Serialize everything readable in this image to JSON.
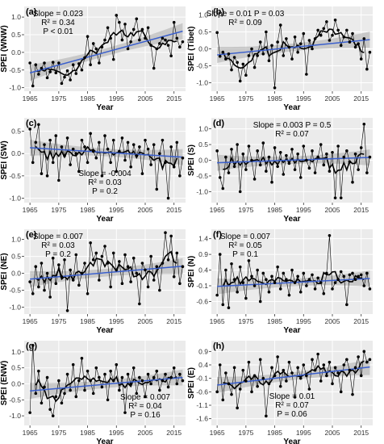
{
  "chart_data": [
    {
      "panel": "(a)",
      "type": "line",
      "region": "WNW",
      "xlabel": "Year",
      "ylabel": "SPEI (WNW)",
      "xlim": [
        1963,
        2019
      ],
      "ylim": [
        -1.1,
        1.3
      ],
      "xticks": [
        1965,
        1975,
        1985,
        1995,
        2005,
        2015
      ],
      "yticks": [
        -1.0,
        -0.5,
        0.0,
        0.5,
        1.0
      ],
      "trend": {
        "start": -0.58,
        "end": 0.6
      },
      "annotations": [
        "Slope = 0.023",
        "R² = 0.34",
        "P < 0.01"
      ],
      "annot_pos": "top-left",
      "series": [
        {
          "values": [
            -0.3,
            -0.95,
            -0.35,
            -0.62,
            -0.45,
            -0.3,
            -0.72,
            -0.55,
            -0.28,
            -0.58,
            -0.3,
            -0.88,
            -0.7,
            -0.52,
            -0.78,
            -0.35,
            -0.6,
            -0.32,
            -0.5,
            -0.15,
            0.45,
            -0.35,
            0.25,
            0.1,
            -0.3,
            0.15,
            0.35,
            0.7,
            0.4,
            -0.2,
            1.05,
            0.85,
            0.35,
            0.8,
            0.1,
            0.3,
            0.65,
            0.95,
            0.35,
            0.65,
            0.4,
            0.7,
            0.2,
            -0.45,
            0.1,
            0.25,
            0.4,
            0.35,
            0.2,
            -0.1,
            0.85,
            0.4,
            0.15,
            0.3
          ]
        }
      ]
    },
    {
      "panel": "(b)",
      "type": "line",
      "region": "Tibet",
      "xlabel": "Year",
      "ylabel": "SPEI (Tibet)",
      "xlim": [
        1963,
        2019
      ],
      "ylim": [
        -1.25,
        1.25
      ],
      "xticks": [
        1965,
        1975,
        1985,
        1995,
        2005,
        2015
      ],
      "yticks": [
        -1.0,
        -0.5,
        0.0,
        0.5,
        1.0
      ],
      "trend": {
        "start": -0.18,
        "end": 0.27
      },
      "annotations": [
        "Slope = 0.01  P = 0.03",
        "R² = 0.09"
      ],
      "annot_pos": "top-left",
      "series": [
        {
          "values": [
            0.48,
            -0.22,
            -0.1,
            -0.3,
            -0.15,
            -0.62,
            -0.25,
            -0.4,
            -0.95,
            -0.45,
            -0.78,
            -0.2,
            0.0,
            -0.55,
            -0.2,
            0.2,
            -0.15,
            0.5,
            -0.35,
            0.1,
            -1.15,
            0.2,
            0.7,
            -0.2,
            0.3,
            0.05,
            -0.3,
            0.35,
            -0.1,
            0.15,
            0.45,
            -0.75,
            0.25,
            0.0,
            0.3,
            0.55,
            0.4,
            0.6,
            0.8,
            0.25,
            0.4,
            0.85,
            0.55,
            0.1,
            0.35,
            0.55,
            0.2,
            0.45,
            0.05,
            0.15,
            -0.3,
            0.3,
            -0.6,
            -0.1
          ]
        }
      ]
    },
    {
      "panel": "(c)",
      "type": "line",
      "region": "SW",
      "xlabel": "Year",
      "ylabel": "SPEI (SW)",
      "xlim": [
        1963,
        2019
      ],
      "ylim": [
        -1.1,
        0.8
      ],
      "xticks": [
        1965,
        1975,
        1985,
        1995,
        2005,
        2015
      ],
      "yticks": [
        -1.0,
        -0.5,
        0.0,
        0.5
      ],
      "trend": {
        "start": 0.13,
        "end": -0.08
      },
      "annotations": [
        "Slope = -0.004",
        "R² = 0.03",
        "P = 0.2"
      ],
      "annot_pos": "bottom-middle",
      "series": [
        {
          "values": [
            0.55,
            -0.2,
            0.25,
            0.65,
            -0.45,
            0.2,
            -0.5,
            0.3,
            -0.2,
            0.4,
            -0.6,
            0.15,
            -0.05,
            0.35,
            -0.25,
            0.1,
            0.0,
            -0.4,
            0.3,
            0.15,
            -0.2,
            0.45,
            0.05,
            -0.1,
            0.25,
            -0.5,
            0.4,
            0.1,
            -0.2,
            0.3,
            -0.4,
            0.05,
            0.35,
            -0.15,
            0.25,
            -0.3,
            0.2,
            -0.05,
            0.15,
            -0.45,
            0.3,
            0.1,
            -0.25,
            0.2,
            -0.8,
            0.0,
            0.3,
            -0.2,
            -1.0,
            0.15,
            -0.3,
            0.25,
            -0.5,
            -0.1
          ]
        }
      ]
    },
    {
      "panel": "(d)",
      "type": "line",
      "region": "S",
      "xlabel": "Year",
      "ylabel": "SPEI (S)",
      "xlim": [
        1963,
        2019
      ],
      "ylim": [
        -1.35,
        1.35
      ],
      "xticks": [
        1965,
        1975,
        1985,
        1995,
        2005,
        2015
      ],
      "yticks": [
        -1.0,
        -0.5,
        0.0,
        0.5,
        1.0
      ],
      "trend": {
        "start": -0.08,
        "end": 0.09
      },
      "annotations": [
        "Slope = 0.003   P = 0.5",
        "R² = 0.07"
      ],
      "annot_pos": "top-middle",
      "series": [
        {
          "values": [
            0.3,
            -0.55,
            -0.9,
            0.1,
            -0.4,
            0.35,
            -0.2,
            0.5,
            -1.0,
            0.2,
            -0.3,
            0.45,
            0.0,
            -0.6,
            0.3,
            -0.15,
            0.55,
            -0.35,
            0.1,
            -0.7,
            0.4,
            -0.2,
            0.25,
            -0.45,
            0.15,
            -0.1,
            0.35,
            -0.3,
            0.2,
            -0.55,
            0.45,
            0.0,
            -0.25,
            0.3,
            -0.4,
            0.1,
            0.5,
            -0.15,
            0.2,
            -0.35,
            0.25,
            -1.2,
            0.45,
            -1.2,
            0.1,
            0.3,
            -0.05,
            -0.7,
            0.2,
            -0.3,
            0.4,
            1.15,
            -0.4,
            0.1
          ]
        }
      ]
    },
    {
      "panel": "(e)",
      "type": "line",
      "region": "NE",
      "xlabel": "Year",
      "ylabel": "SPEI (NE)",
      "xlim": [
        1963,
        2019
      ],
      "ylim": [
        -1.2,
        1.3
      ],
      "xticks": [
        1965,
        1975,
        1985,
        1995,
        2005,
        2015
      ],
      "yticks": [
        -1.0,
        -0.5,
        0.0,
        0.5,
        1.0
      ],
      "trend": {
        "start": -0.17,
        "end": 0.21
      },
      "annotations": [
        "Slope = 0.007",
        "R² = 0.03",
        "P = 0.2"
      ],
      "annot_pos": "top-left",
      "series": [
        {
          "values": [
            -0.25,
            -0.6,
            0.2,
            -0.4,
            0.3,
            -0.5,
            0.0,
            -0.7,
            0.45,
            -0.3,
            0.25,
            -0.1,
            0.4,
            -1.1,
            0.1,
            -0.2,
            0.55,
            -0.35,
            0.0,
            0.3,
            -0.6,
            0.9,
            0.4,
            0.6,
            -0.2,
            0.5,
            0.8,
            0.3,
            -0.4,
            0.6,
            0.1,
            0.35,
            -0.3,
            0.55,
            0.2,
            -0.25,
            0.45,
            0.0,
            -0.9,
            0.3,
            0.1,
            -0.4,
            0.5,
            -0.2,
            0.2,
            -0.5,
            0.3,
            1.2,
            0.4,
            1.1,
            -0.1,
            0.6,
            -0.3,
            0.2
          ]
        }
      ]
    },
    {
      "panel": "(f)",
      "type": "line",
      "region": "N",
      "xlabel": "Year",
      "ylabel": "SPEI (N)",
      "xlim": [
        1963,
        2019
      ],
      "ylim": [
        -1.0,
        1.7
      ],
      "xticks": [
        1965,
        1975,
        1985,
        1995,
        2005,
        2015
      ],
      "yticks": [
        -0.6,
        -0.1,
        0.4,
        0.9,
        1.4
      ],
      "trend": {
        "start": -0.12,
        "end": 0.13
      },
      "annotations": [
        "Slope = 0.007",
        "R² = 0.05",
        "P = 0.1"
      ],
      "annot_pos": "top-left",
      "series": [
        {
          "values": [
            -0.4,
            0.9,
            -0.7,
            0.4,
            -0.8,
            0.6,
            0.1,
            -0.3,
            0.5,
            0.0,
            -0.5,
            0.7,
            0.2,
            -0.1,
            0.4,
            -0.6,
            0.3,
            0.1,
            -0.3,
            0.2,
            0.0,
            0.5,
            -0.2,
            0.3,
            0.1,
            -0.4,
            0.4,
            0.0,
            0.2,
            -0.3,
            0.3,
            -0.1,
            0.1,
            0.25,
            -0.2,
            0.15,
            0.0,
            -0.35,
            0.3,
            1.5,
            -0.2,
            0.0,
            0.1,
            0.35,
            0.2,
            -0.7,
            0.25,
            0.3,
            0.1,
            0.2,
            0.25,
            -0.1,
            0.3,
            -0.2
          ]
        }
      ]
    },
    {
      "panel": "(g)",
      "type": "line",
      "region": "ENW",
      "xlabel": "Year",
      "ylabel": "SPEI (ENW)",
      "xlim": [
        1963,
        2019
      ],
      "ylim": [
        -1.3,
        1.35
      ],
      "xticks": [
        1965,
        1975,
        1985,
        1995,
        2005,
        2015
      ],
      "yticks": [
        -1.0,
        -0.5,
        0.0,
        0.5,
        1.0
      ],
      "trend": {
        "start": -0.22,
        "end": 0.2
      },
      "annotations": [
        "Slope = 0.007",
        "R² = 0.04",
        "P = 0.16"
      ],
      "annot_pos": "bottom-right",
      "series": [
        {
          "values": [
            -0.9,
            1.2,
            -0.3,
            0.4,
            -0.6,
            -0.1,
            0.2,
            -0.8,
            -1.0,
            -0.4,
            0.1,
            -0.6,
            -0.3,
            0.3,
            -0.2,
            0.6,
            -0.4,
            0.1,
            0.8,
            -0.2,
            0.4,
            0.1,
            -0.3,
            0.5,
            0.2,
            -0.1,
            0.3,
            -0.5,
            0.4,
            0.1,
            0.6,
            -0.2,
            0.2,
            -0.9,
            0.3,
            0.0,
            0.5,
            -0.3,
            0.2,
            0.1,
            -0.4,
            0.3,
            0.0,
            0.2,
            0.4,
            -0.2,
            0.1,
            0.3,
            -0.1,
            0.2,
            0.5,
            0.0,
            0.3,
            0.1
          ]
        }
      ]
    },
    {
      "panel": "(h)",
      "type": "line",
      "region": "E",
      "xlabel": "Year",
      "ylabel": "SPEI (E)",
      "xlim": [
        1963,
        2019
      ],
      "ylim": [
        -1.85,
        1.3
      ],
      "xticks": [
        1965,
        1975,
        1985,
        1995,
        2005,
        2015
      ],
      "yticks": [
        -1.6,
        -1.1,
        -0.6,
        -0.1,
        0.4,
        0.9
      ],
      "trend": {
        "start": -0.35,
        "end": 0.32
      },
      "annotations": [
        "Slope = 0.01",
        "R² = 0.07",
        "P = 0.06"
      ],
      "annot_pos": "bottom-middle",
      "series": [
        {
          "values": [
            -0.6,
            0.4,
            -0.9,
            0.1,
            -0.3,
            -0.7,
            0.3,
            -1.2,
            -0.5,
            0.2,
            -0.2,
            0.5,
            -0.6,
            0.0,
            -0.4,
            0.6,
            -0.1,
            -1.5,
            -0.3,
            0.3,
            0.0,
            0.7,
            -0.4,
            0.2,
            -0.2,
            0.5,
            0.1,
            -0.8,
            0.3,
            -0.1,
            0.4,
            0.0,
            -0.5,
            0.6,
            0.2,
            0.8,
            -0.2,
            0.4,
            0.0,
            0.5,
            -0.3,
            0.3,
            0.1,
            -0.6,
            0.4,
            0.6,
            0.2,
            -0.7,
            0.3,
            0.7,
            0.0,
            0.9,
            0.5,
            0.6
          ]
        }
      ]
    }
  ]
}
